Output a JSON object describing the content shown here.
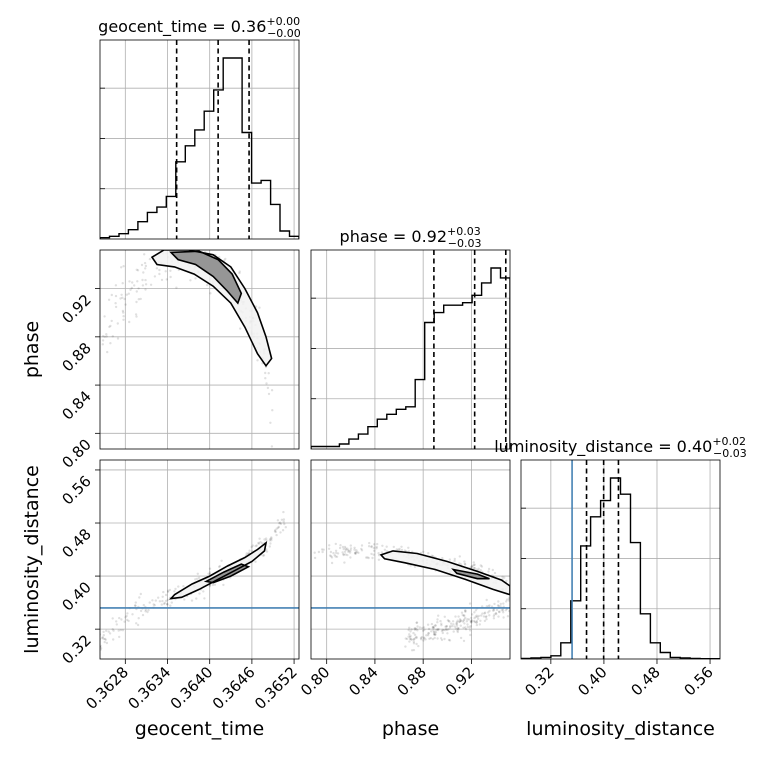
{
  "chart_data": {
    "type": "scatter",
    "plot_kind": "corner plot",
    "grid": true,
    "parameters": [
      "geocent_time",
      "phase",
      "luminosity_distance"
    ],
    "axis_labels": {
      "geocent_time": "geocent_time",
      "phase": "phase",
      "luminosity_distance": "luminosity_distance"
    },
    "titles": [
      {
        "param": "geocent_time",
        "text": "geocent_time = 0.36",
        "plus": "+0.00",
        "minus": "−0.00"
      },
      {
        "param": "phase",
        "text": "phase = 0.92",
        "plus": "+0.03",
        "minus": "−0.03"
      },
      {
        "param": "luminosity_distance",
        "text": "luminosity_distance = 0.40",
        "plus": "+0.02",
        "minus": "−0.03"
      }
    ],
    "ranges": {
      "geocent_time": [
        0.36244,
        0.36527
      ],
      "phase": [
        0.787,
        0.952
      ],
      "luminosity_distance": [
        0.275,
        0.575
      ]
    },
    "ticks": {
      "geocent_time": {
        "values": [
          0.3628,
          0.3634,
          0.364,
          0.3646,
          0.3652
        ],
        "labels": [
          "0.3628",
          "0.3634",
          "0.3640",
          "0.3646",
          "0.3652"
        ]
      },
      "phase": {
        "values": [
          0.8,
          0.84,
          0.88,
          0.92
        ],
        "labels": [
          "0.80",
          "0.84",
          "0.88",
          "0.92"
        ]
      },
      "luminosity_distance": {
        "values": [
          0.32,
          0.4,
          0.48,
          0.56
        ],
        "labels": [
          "0.32",
          "0.40",
          "0.48",
          "0.56"
        ]
      }
    },
    "histograms": {
      "geocent_time": [
        0.5,
        1,
        2,
        3.5,
        6.5,
        10,
        12,
        16,
        29,
        35,
        41,
        48,
        56,
        68,
        68,
        40,
        21,
        22,
        13,
        3,
        1
      ],
      "phase": [
        1,
        1,
        1,
        2,
        4,
        6,
        9,
        12,
        14,
        16,
        17,
        28,
        51,
        55,
        58,
        58,
        59,
        62,
        67,
        73,
        69
      ],
      "luminosity_distance": [
        0.2,
        0.3,
        0.5,
        1,
        5,
        18,
        35,
        44,
        49,
        56,
        51,
        36,
        14,
        5,
        2,
        0.5,
        0.3,
        0.2,
        0.1,
        0.1
      ]
    },
    "quantiles": {
      "geocent_time": [
        0.36353,
        0.36412,
        0.36456
      ],
      "phase": [
        0.8889,
        0.9227,
        0.9485
      ],
      "luminosity_distance": [
        0.3738,
        0.3996,
        0.4219
      ]
    },
    "truths": {
      "luminosity_distance": 0.352
    },
    "contours": {
      "geocent_time|phase": [
        [
          [
            0.36318,
            0.946
          ],
          [
            0.36335,
            0.952
          ],
          [
            0.3637,
            0.952
          ],
          [
            0.36405,
            0.948
          ],
          [
            0.3643,
            0.938
          ],
          [
            0.3645,
            0.92
          ],
          [
            0.36468,
            0.9
          ],
          [
            0.3648,
            0.88
          ],
          [
            0.36488,
            0.862
          ],
          [
            0.3648,
            0.856
          ],
          [
            0.36468,
            0.866
          ],
          [
            0.3645,
            0.888
          ],
          [
            0.3643,
            0.908
          ],
          [
            0.36405,
            0.922
          ],
          [
            0.36378,
            0.932
          ],
          [
            0.3635,
            0.938
          ],
          [
            0.36325,
            0.94
          ]
        ],
        [
          [
            0.36345,
            0.95
          ],
          [
            0.36385,
            0.951
          ],
          [
            0.36412,
            0.944
          ],
          [
            0.36432,
            0.932
          ],
          [
            0.36445,
            0.916
          ],
          [
            0.3644,
            0.908
          ],
          [
            0.36425,
            0.918
          ],
          [
            0.36405,
            0.93
          ],
          [
            0.3638,
            0.94
          ],
          [
            0.36355,
            0.944
          ]
        ]
      ],
      "geocent_time|luminosity_distance": [
        [
          [
            0.3635,
            0.372
          ],
          [
            0.36375,
            0.388
          ],
          [
            0.364,
            0.4
          ],
          [
            0.36425,
            0.415
          ],
          [
            0.3645,
            0.428
          ],
          [
            0.36468,
            0.44
          ],
          [
            0.3648,
            0.45
          ],
          [
            0.36478,
            0.438
          ],
          [
            0.3646,
            0.422
          ],
          [
            0.36435,
            0.408
          ],
          [
            0.3641,
            0.394
          ],
          [
            0.36385,
            0.38
          ],
          [
            0.3636,
            0.368
          ],
          [
            0.36345,
            0.366
          ]
        ],
        [
          [
            0.36395,
            0.392
          ],
          [
            0.3642,
            0.406
          ],
          [
            0.36445,
            0.418
          ],
          [
            0.36455,
            0.414
          ],
          [
            0.3643,
            0.4
          ],
          [
            0.36405,
            0.39
          ]
        ]
      ],
      "phase|luminosity_distance": [
        [
          [
            0.845,
            0.432
          ],
          [
            0.855,
            0.438
          ],
          [
            0.875,
            0.434
          ],
          [
            0.9,
            0.422
          ],
          [
            0.925,
            0.407
          ],
          [
            0.945,
            0.394
          ],
          [
            0.952,
            0.385
          ],
          [
            0.952,
            0.372
          ],
          [
            0.938,
            0.38
          ],
          [
            0.915,
            0.395
          ],
          [
            0.89,
            0.41
          ],
          [
            0.865,
            0.42
          ],
          [
            0.848,
            0.426
          ]
        ],
        [
          [
            0.905,
            0.41
          ],
          [
            0.925,
            0.403
          ],
          [
            0.935,
            0.396
          ],
          [
            0.925,
            0.396
          ],
          [
            0.908,
            0.404
          ]
        ]
      ]
    },
    "samples": {
      "note_axes": "pairs (geocent_time, phase), (geocent_time, luminosity_distance), (phase, luminosity_distance)",
      "trend_gt_phase": [
        [
          0.36248,
          0.875
        ],
        [
          0.36265,
          0.903
        ],
        [
          0.3629,
          0.925
        ],
        [
          0.3632,
          0.94
        ],
        [
          0.3635,
          0.948
        ],
        [
          0.3639,
          0.944
        ],
        [
          0.3642,
          0.93
        ],
        [
          0.36445,
          0.91
        ],
        [
          0.36465,
          0.885
        ],
        [
          0.36478,
          0.862
        ],
        [
          0.36485,
          0.83
        ],
        [
          0.3649,
          0.805
        ]
      ],
      "trend_gt_dist": [
        [
          0.3624,
          0.3
        ],
        [
          0.3628,
          0.335
        ],
        [
          0.3632,
          0.358
        ],
        [
          0.3636,
          0.375
        ],
        [
          0.364,
          0.395
        ],
        [
          0.3644,
          0.415
        ],
        [
          0.3647,
          0.44
        ],
        [
          0.3649,
          0.46
        ],
        [
          0.3651,
          0.49
        ]
      ],
      "trend_phase_dist_upper": [
        [
          0.79,
          0.435
        ],
        [
          0.82,
          0.438
        ],
        [
          0.85,
          0.437
        ],
        [
          0.88,
          0.428
        ],
        [
          0.91,
          0.413
        ],
        [
          0.94,
          0.395
        ],
        [
          0.952,
          0.385
        ]
      ],
      "trend_phase_dist_lower": [
        [
          0.865,
          0.308
        ],
        [
          0.89,
          0.318
        ],
        [
          0.91,
          0.328
        ],
        [
          0.93,
          0.338
        ],
        [
          0.945,
          0.35
        ],
        [
          0.952,
          0.355
        ]
      ]
    }
  }
}
